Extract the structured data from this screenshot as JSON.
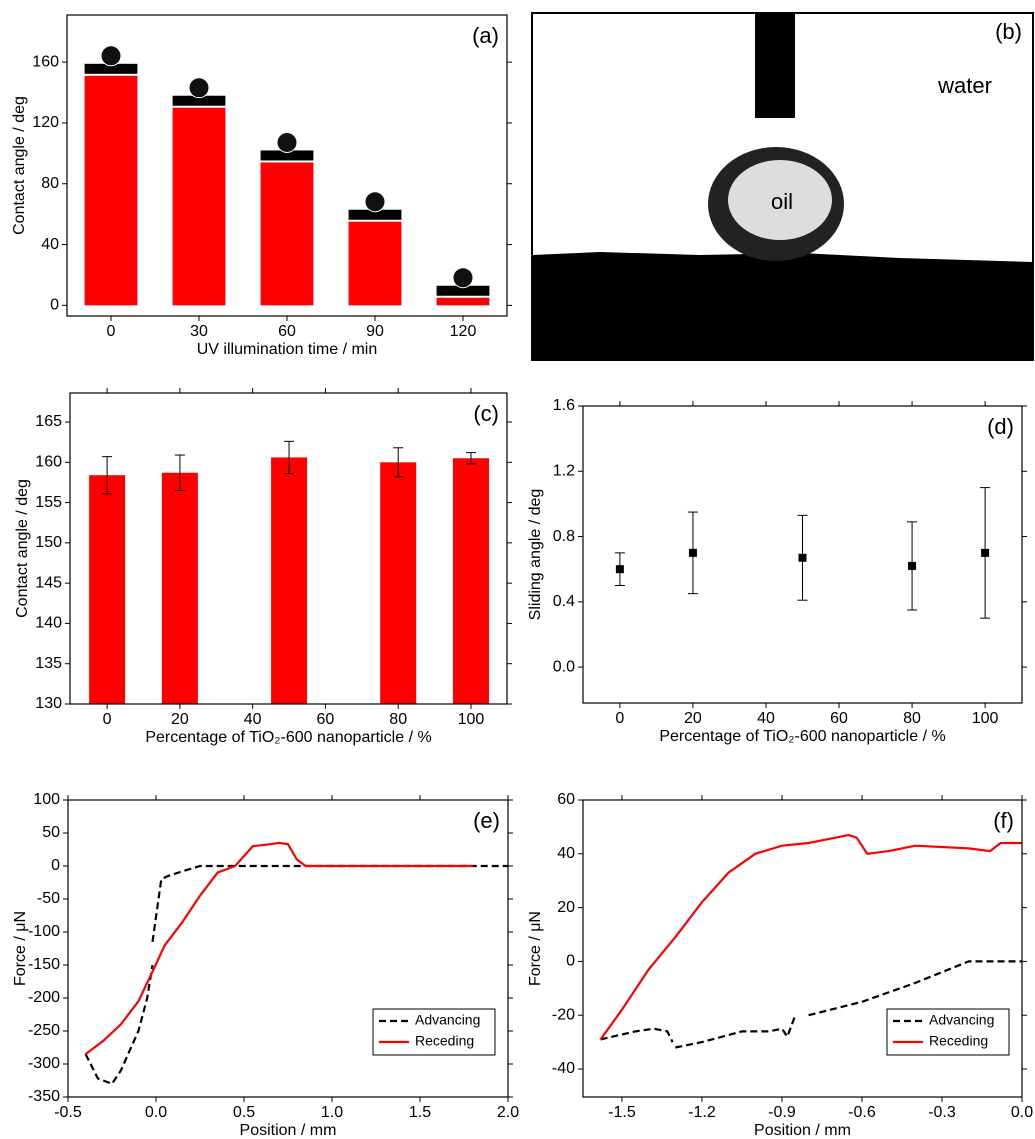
{
  "chart_data": [
    {
      "type": "bar",
      "label": "(a)",
      "xlabel": "UV illumination time / min",
      "ylabel": "Contact angle / deg",
      "categories": [
        "0",
        "30",
        "60",
        "90",
        "120"
      ],
      "values": [
        151,
        130,
        94,
        55,
        5
      ],
      "color": "#ff0000",
      "ylim": [
        -7,
        191
      ],
      "yticks": [
        0,
        40,
        80,
        120,
        160
      ]
    },
    {
      "type": "image",
      "label": "(b)",
      "annotations": [
        "water",
        "oil"
      ]
    },
    {
      "type": "bar",
      "label": "(c)",
      "xlabel": "Percentage of TiO₂-600 nanoparticle / %",
      "ylabel": "Contact angle / deg",
      "x": [
        0,
        20,
        50,
        80,
        100
      ],
      "values": [
        158.4,
        158.7,
        160.6,
        160.0,
        160.5
      ],
      "errors": [
        2.3,
        2.2,
        2.0,
        1.8,
        0.7
      ],
      "color": "#ff0000",
      "xlim": [
        -10.2,
        109.9
      ],
      "xticks": [
        0,
        20,
        40,
        60,
        80,
        100
      ],
      "ylim": [
        130,
        168.6
      ],
      "yticks": [
        130,
        135,
        140,
        145,
        150,
        155,
        160,
        165
      ]
    },
    {
      "type": "scatter",
      "label": "(d)",
      "xlabel": "Percentage of TiO₂-600 nanoparticle / %",
      "ylabel": "Sliding angle / deg",
      "x": [
        0,
        20,
        50,
        80,
        100
      ],
      "values": [
        0.6,
        0.7,
        0.67,
        0.62,
        0.7
      ],
      "errors": [
        0.1,
        0.25,
        0.26,
        0.27,
        0.4
      ],
      "color": "#000000",
      "xlim": [
        -10.1,
        110.1
      ],
      "xticks": [
        0,
        20,
        40,
        60,
        80,
        100
      ],
      "ylim": [
        -0.22,
        1.6
      ],
      "yticks": [
        {
          "value": 0,
          "label": "0.0"
        },
        0.4,
        0.8,
        1.2,
        1.6
      ]
    },
    {
      "type": "line",
      "label": "(e)",
      "xlabel": "Position / mm",
      "ylabel": "Force  / μN",
      "legend": "lower right",
      "xlim": [
        -0.5,
        2.0
      ],
      "xticks": [
        -0.5,
        {
          "value": 0,
          "label": "0.0"
        },
        0.5,
        {
          "value": 1,
          "label": "1.0"
        },
        1.5,
        {
          "value": 2,
          "label": "2.0"
        }
      ],
      "ylim": [
        -350,
        100
      ],
      "yticks": [
        -350,
        -300,
        -250,
        -200,
        -150,
        -100,
        -50,
        0,
        50,
        100
      ],
      "series": [
        {
          "name": "Advancing",
          "color": "#000000",
          "dashed": true,
          "x": [
            -0.4,
            -0.33,
            -0.25,
            -0.2,
            -0.1,
            -0.05,
            -0.02,
            null,
            -0.02,
            0.03,
            0.07,
            0.15,
            0.25,
            0.5,
            1.0,
            2.0
          ],
          "values": [
            -285,
            -322,
            -330,
            -310,
            -250,
            -200,
            -150,
            null,
            -115,
            -20,
            -15,
            -8,
            0,
            0,
            0,
            0
          ]
        },
        {
          "name": "Receding",
          "color": "#ff0000",
          "dashed": false,
          "x": [
            -0.4,
            -0.3,
            -0.2,
            -0.1,
            -0.02,
            0.05,
            0.15,
            0.25,
            0.35,
            0.45,
            0.55,
            0.65,
            0.7,
            0.75,
            0.8,
            0.85,
            1.0,
            1.8
          ],
          "values": [
            -285,
            -265,
            -240,
            -205,
            -160,
            -120,
            -85,
            -45,
            -10,
            0,
            30,
            33,
            35,
            33,
            10,
            0,
            0,
            0
          ]
        }
      ]
    },
    {
      "type": "line",
      "label": "(f)",
      "xlabel": "Position / mm",
      "ylabel": "Force / μN",
      "legend": "lower right",
      "xlim": [
        -1.646,
        0
      ],
      "xticks": [
        -1.5,
        -1.2,
        -0.9,
        -0.6,
        -0.3,
        {
          "value": 0,
          "label": "0.0"
        }
      ],
      "ylim": [
        -50.4,
        60
      ],
      "yticks": [
        -40,
        -20,
        0,
        20,
        40,
        60
      ],
      "series": [
        {
          "name": "Advancing",
          "color": "#000000",
          "dashed": true,
          "x": [
            -1.58,
            -1.45,
            -1.38,
            -1.33,
            -1.31,
            null,
            -1.3,
            -1.2,
            -1.05,
            -0.95,
            -0.9,
            -0.88,
            -0.85,
            null,
            -0.8,
            -0.6,
            -0.4,
            -0.2,
            0
          ],
          "values": [
            -29,
            -26,
            -25,
            -26,
            -30,
            null,
            -32,
            -30,
            -26,
            -26,
            -25,
            -28,
            -20,
            null,
            -20,
            -15,
            -8,
            0,
            0
          ]
        },
        {
          "name": "Receding",
          "color": "#ff0000",
          "dashed": false,
          "x": [
            -1.58,
            -1.5,
            -1.4,
            -1.3,
            -1.2,
            -1.1,
            -1.0,
            -0.9,
            -0.8,
            -0.7,
            -0.65,
            -0.62,
            -0.58,
            -0.5,
            -0.4,
            -0.2,
            -0.12,
            -0.08,
            0
          ],
          "values": [
            -29,
            -18,
            -3,
            9,
            22,
            33,
            40,
            43,
            44,
            46,
            47,
            46,
            40,
            41,
            43,
            42,
            41,
            44,
            44
          ]
        }
      ]
    }
  ]
}
